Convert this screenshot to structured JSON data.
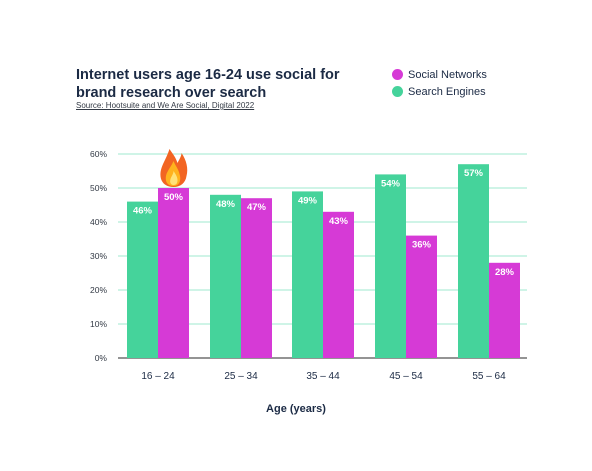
{
  "chart_data": {
    "type": "bar",
    "title": "Internet users age 16-24 use social for brand research over search",
    "subtitle": "Source: Hootsuite and We Are Social, Digital 2022",
    "xlabel": "Age (years)",
    "ylabel": "",
    "categories": [
      "16 – 24",
      "25 – 34",
      "35 – 44",
      "45 – 54",
      "55 – 64"
    ],
    "series": [
      {
        "name": "Search Engines",
        "values": [
          46,
          48,
          49,
          54,
          57
        ],
        "color": "#45d39b"
      },
      {
        "name": "Social Networks",
        "values": [
          50,
          47,
          43,
          36,
          28
        ],
        "color": "#d63ad6"
      }
    ],
    "value_suffix": "%",
    "ylim": [
      0,
      60
    ],
    "yticks": [
      "0%",
      "10%",
      "20%",
      "30%",
      "40%",
      "50%",
      "60%"
    ],
    "grid": true,
    "legend_position": "top-right",
    "legend_order": [
      "Social Networks",
      "Search Engines"
    ],
    "annotation_icon": "fire-icon",
    "annotation_category": "16 – 24"
  }
}
